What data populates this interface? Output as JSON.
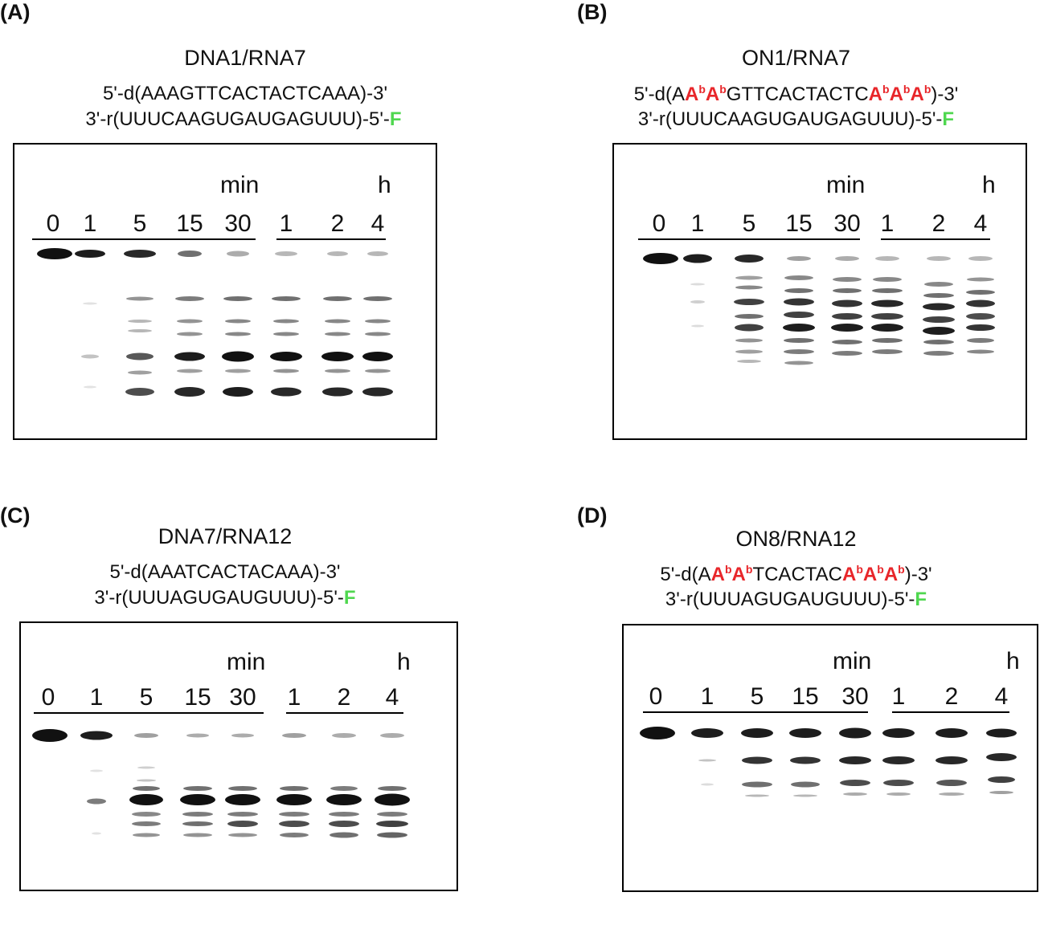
{
  "time_units": {
    "min": "min",
    "h": "h"
  },
  "lanes": [
    "0",
    "1",
    "5",
    "15",
    "30",
    "1",
    "2",
    "4"
  ],
  "panels": [
    {
      "letter": "(A)",
      "title": "DNA1/RNA7",
      "seq_top": {
        "prefix": "5'-d(",
        "parts": [
          [
            "n",
            "AAAGTTCACTACTCAAA"
          ]
        ],
        "suffix": ")-3'"
      },
      "seq_bottom": {
        "prefix": "3'-r(UUUCAAGUGAUGAGUUU)-5'-",
        "label": "F"
      }
    },
    {
      "letter": "(B)",
      "title": "ON1/RNA7",
      "seq_top": {
        "prefix": "5'-d(",
        "parts": [
          [
            "n",
            "A"
          ],
          [
            "m",
            "A"
          ],
          [
            "m",
            "A"
          ],
          [
            "n",
            "GTTCACTACTC"
          ],
          [
            "m",
            "A"
          ],
          [
            "m",
            "A"
          ],
          [
            "m",
            "A"
          ]
        ],
        "suffix": ")-3'"
      },
      "seq_bottom": {
        "prefix": "3'-r(UUUCAAGUGAUGAGUUU)-5'-",
        "label": "F"
      }
    },
    {
      "letter": "(C)",
      "title": "DNA7/RNA12",
      "seq_top": {
        "prefix": "5'-d(",
        "parts": [
          [
            "n",
            "AAATCACTACAAA"
          ]
        ],
        "suffix": ")-3'"
      },
      "seq_bottom": {
        "prefix": "3'-r(UUUAGUGAUGUUU)-5'-",
        "label": "F"
      }
    },
    {
      "letter": "(D)",
      "title": "ON8/RNA12",
      "seq_top": {
        "prefix": "5'-d(",
        "parts": [
          [
            "n",
            "A"
          ],
          [
            "m",
            "A"
          ],
          [
            "m",
            "A"
          ],
          [
            "n",
            "TCACTAC"
          ],
          [
            "m",
            "A"
          ],
          [
            "m",
            "A"
          ],
          [
            "m",
            "A"
          ]
        ],
        "suffix": ")-3'"
      },
      "seq_bottom": {
        "prefix": "3'-r(UUUAGUGAUGUUU)-5'-",
        "label": "F"
      }
    }
  ],
  "modified_base": {
    "base": "A",
    "superscript": "b"
  },
  "colors": {
    "modified": "#e8262a",
    "fluorophore": "#4fd74f",
    "band": "#111111"
  }
}
